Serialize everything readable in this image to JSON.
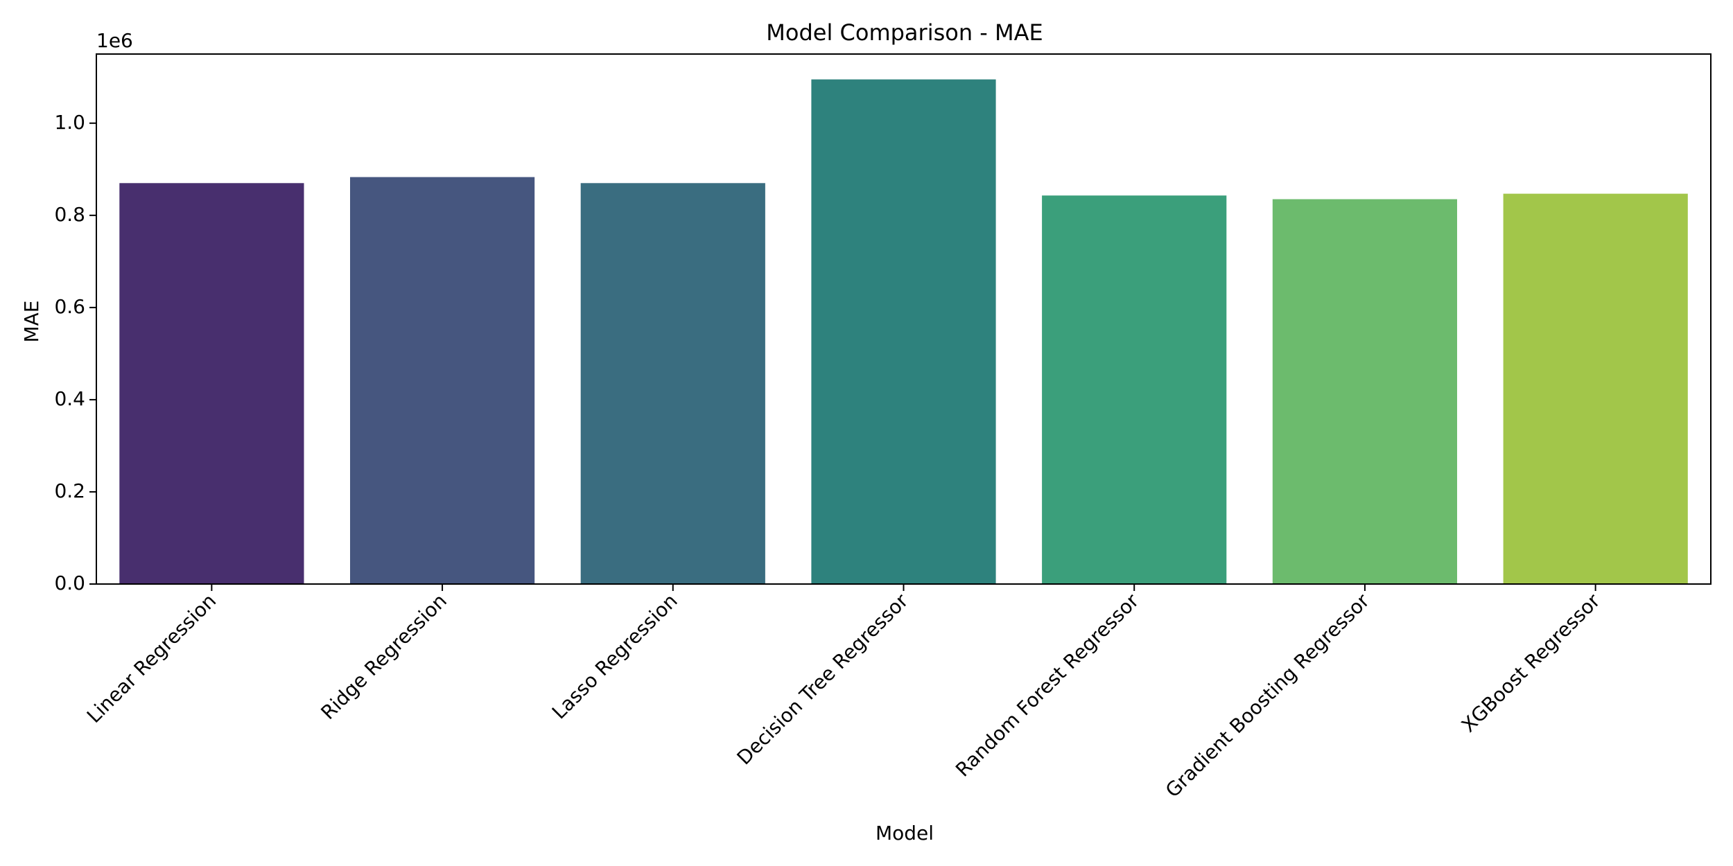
{
  "chart_data": {
    "type": "bar",
    "title": "Model Comparison - MAE",
    "xlabel": "Model",
    "ylabel": "MAE",
    "y_offset_label": "1e6",
    "categories": [
      "Linear Regression",
      "Ridge Regression",
      "Lasso Regression",
      "Decision Tree Regressor",
      "Random Forest Regressor",
      "Gradient Boosting Regressor",
      "XGBoost Regressor"
    ],
    "values": [
      870000,
      883000,
      870000,
      1095000,
      843000,
      835000,
      847000
    ],
    "colors": [
      "#482f6e",
      "#46567f",
      "#3a6d80",
      "#2e827d",
      "#3b9f7b",
      "#6cbb6d",
      "#a2c64a"
    ],
    "ylim": [
      0,
      1150000
    ],
    "yticks": [
      0,
      200000,
      400000,
      600000,
      800000,
      1000000
    ],
    "ytick_labels": [
      "0.0",
      "0.2",
      "0.4",
      "0.6",
      "0.8",
      "1.0"
    ],
    "grid": false,
    "legend": "none"
  }
}
